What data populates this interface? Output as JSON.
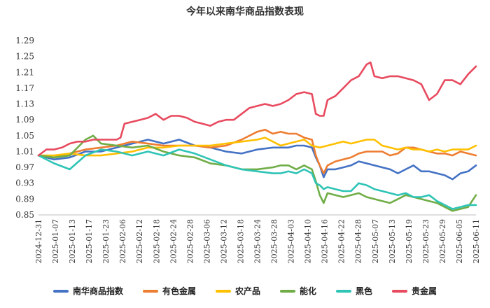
{
  "chart_data": {
    "type": "line",
    "title": "今年以来南华商品指数表现",
    "xlabel": "",
    "ylabel": "",
    "ylim": [
      0.85,
      1.29
    ],
    "yticks": [
      "0.85",
      "0.89",
      "0.93",
      "0.97",
      "1.01",
      "1.05",
      "1.09",
      "1.13",
      "1.17",
      "1.21",
      "1.25",
      "1.29"
    ],
    "ytick_values": [
      0.85,
      0.89,
      0.93,
      0.97,
      1.01,
      1.05,
      1.09,
      1.13,
      1.17,
      1.21,
      1.25,
      1.29
    ],
    "xticks": [
      "2024-12-31",
      "2025-01-07",
      "2025-01-13",
      "2025-01-17",
      "2025-01-23",
      "2025-02-06",
      "2025-02-12",
      "2025-02-18",
      "2025-02-24",
      "2025-02-28",
      "2025-03-06",
      "2025-03-12",
      "2025-03-18",
      "2025-03-24",
      "2025-03-28",
      "2025-04-03",
      "2025-04-10",
      "2025-04-16",
      "2025-04-22",
      "2025-04-28",
      "2025-05-07",
      "2025-05-13",
      "2025-05-19",
      "2025-05-23",
      "2025-05-29",
      "2025-06-05",
      "2025-06-11"
    ],
    "x_range": [
      0,
      112
    ],
    "legend_position": "bottom",
    "grid": false,
    "series": [
      {
        "name": "南华商品指数",
        "color": "#4472C4",
        "points": [
          [
            0,
            1.0
          ],
          [
            4,
            0.99
          ],
          [
            8,
            0.995
          ],
          [
            12,
            1.01
          ],
          [
            16,
            1.01
          ],
          [
            20,
            1.02
          ],
          [
            24,
            1.03
          ],
          [
            28,
            1.04
          ],
          [
            32,
            1.03
          ],
          [
            36,
            1.04
          ],
          [
            40,
            1.025
          ],
          [
            44,
            1.02
          ],
          [
            48,
            1.01
          ],
          [
            52,
            1.005
          ],
          [
            56,
            1.015
          ],
          [
            60,
            1.02
          ],
          [
            64,
            1.02
          ],
          [
            66,
            1.025
          ],
          [
            68,
            1.025
          ],
          [
            70,
            1.02
          ],
          [
            71,
            0.995
          ],
          [
            72,
            0.975
          ],
          [
            73,
            0.945
          ],
          [
            74,
            0.965
          ],
          [
            76,
            0.965
          ],
          [
            78,
            0.97
          ],
          [
            80,
            0.975
          ],
          [
            82,
            0.985
          ],
          [
            84,
            0.98
          ],
          [
            86,
            0.975
          ],
          [
            88,
            0.97
          ],
          [
            90,
            0.965
          ],
          [
            92,
            0.955
          ],
          [
            94,
            0.965
          ],
          [
            96,
            0.975
          ],
          [
            98,
            0.96
          ],
          [
            100,
            0.96
          ],
          [
            102,
            0.955
          ],
          [
            104,
            0.95
          ],
          [
            106,
            0.94
          ],
          [
            108,
            0.955
          ],
          [
            110,
            0.96
          ],
          [
            112,
            0.975
          ]
        ]
      },
      {
        "name": "有色金属",
        "color": "#ED7D31",
        "points": [
          [
            0,
            1.0
          ],
          [
            4,
            0.995
          ],
          [
            8,
            1.005
          ],
          [
            12,
            1.015
          ],
          [
            16,
            1.02
          ],
          [
            20,
            1.025
          ],
          [
            24,
            1.035
          ],
          [
            28,
            1.03
          ],
          [
            32,
            1.025
          ],
          [
            36,
            1.025
          ],
          [
            40,
            1.025
          ],
          [
            44,
            1.02
          ],
          [
            48,
            1.025
          ],
          [
            52,
            1.04
          ],
          [
            56,
            1.06
          ],
          [
            58,
            1.065
          ],
          [
            60,
            1.055
          ],
          [
            62,
            1.06
          ],
          [
            64,
            1.055
          ],
          [
            66,
            1.055
          ],
          [
            68,
            1.045
          ],
          [
            70,
            1.04
          ],
          [
            71,
            1.0
          ],
          [
            72,
            0.975
          ],
          [
            73,
            0.955
          ],
          [
            74,
            0.975
          ],
          [
            76,
            0.985
          ],
          [
            78,
            0.99
          ],
          [
            80,
            0.995
          ],
          [
            82,
            1.005
          ],
          [
            84,
            1.01
          ],
          [
            86,
            1.01
          ],
          [
            88,
            1.01
          ],
          [
            90,
            1.0
          ],
          [
            92,
            1.005
          ],
          [
            94,
            1.02
          ],
          [
            96,
            1.02
          ],
          [
            98,
            1.015
          ],
          [
            100,
            1.01
          ],
          [
            102,
            1.005
          ],
          [
            104,
            1.005
          ],
          [
            106,
            1.0
          ],
          [
            108,
            1.01
          ],
          [
            110,
            1.005
          ],
          [
            112,
            1.0
          ]
        ]
      },
      {
        "name": "农产品",
        "color": "#FFC000",
        "points": [
          [
            0,
            1.0
          ],
          [
            4,
            1.0
          ],
          [
            8,
            1.005
          ],
          [
            12,
            1.0
          ],
          [
            16,
            1.0
          ],
          [
            20,
            1.005
          ],
          [
            24,
            1.01
          ],
          [
            28,
            1.02
          ],
          [
            32,
            1.02
          ],
          [
            36,
            1.025
          ],
          [
            40,
            1.025
          ],
          [
            44,
            1.025
          ],
          [
            48,
            1.03
          ],
          [
            52,
            1.035
          ],
          [
            56,
            1.04
          ],
          [
            58,
            1.045
          ],
          [
            60,
            1.035
          ],
          [
            62,
            1.025
          ],
          [
            64,
            1.03
          ],
          [
            66,
            1.035
          ],
          [
            68,
            1.04
          ],
          [
            70,
            1.025
          ],
          [
            72,
            1.02
          ],
          [
            74,
            1.025
          ],
          [
            76,
            1.03
          ],
          [
            78,
            1.035
          ],
          [
            80,
            1.03
          ],
          [
            82,
            1.035
          ],
          [
            84,
            1.04
          ],
          [
            86,
            1.04
          ],
          [
            88,
            1.025
          ],
          [
            90,
            1.02
          ],
          [
            92,
            1.015
          ],
          [
            94,
            1.02
          ],
          [
            96,
            1.015
          ],
          [
            98,
            1.015
          ],
          [
            100,
            1.01
          ],
          [
            102,
            1.015
          ],
          [
            104,
            1.01
          ],
          [
            106,
            1.015
          ],
          [
            108,
            1.015
          ],
          [
            110,
            1.015
          ],
          [
            112,
            1.025
          ]
        ]
      },
      {
        "name": "能化",
        "color": "#70AD47",
        "points": [
          [
            0,
            1.0
          ],
          [
            4,
            0.995
          ],
          [
            8,
            1.0
          ],
          [
            12,
            1.04
          ],
          [
            14,
            1.05
          ],
          [
            16,
            1.03
          ],
          [
            20,
            1.025
          ],
          [
            24,
            1.02
          ],
          [
            28,
            1.025
          ],
          [
            32,
            1.01
          ],
          [
            36,
            1.0
          ],
          [
            40,
            0.995
          ],
          [
            44,
            0.98
          ],
          [
            48,
            0.975
          ],
          [
            52,
            0.965
          ],
          [
            56,
            0.965
          ],
          [
            60,
            0.97
          ],
          [
            62,
            0.975
          ],
          [
            64,
            0.975
          ],
          [
            66,
            0.965
          ],
          [
            68,
            0.975
          ],
          [
            70,
            0.965
          ],
          [
            71,
            0.935
          ],
          [
            72,
            0.9
          ],
          [
            73,
            0.88
          ],
          [
            74,
            0.905
          ],
          [
            76,
            0.9
          ],
          [
            78,
            0.895
          ],
          [
            80,
            0.9
          ],
          [
            82,
            0.905
          ],
          [
            84,
            0.895
          ],
          [
            86,
            0.89
          ],
          [
            88,
            0.885
          ],
          [
            90,
            0.88
          ],
          [
            92,
            0.89
          ],
          [
            94,
            0.9
          ],
          [
            96,
            0.895
          ],
          [
            98,
            0.89
          ],
          [
            100,
            0.885
          ],
          [
            102,
            0.88
          ],
          [
            104,
            0.87
          ],
          [
            106,
            0.86
          ],
          [
            108,
            0.865
          ],
          [
            110,
            0.87
          ],
          [
            112,
            0.9
          ]
        ]
      },
      {
        "name": "黑色",
        "color": "#2EC4B6",
        "points": [
          [
            0,
            1.0
          ],
          [
            4,
            0.98
          ],
          [
            8,
            0.965
          ],
          [
            12,
            1.0
          ],
          [
            16,
            1.015
          ],
          [
            20,
            1.01
          ],
          [
            24,
            1.0
          ],
          [
            28,
            1.01
          ],
          [
            32,
            1.0
          ],
          [
            36,
            1.015
          ],
          [
            40,
            1.005
          ],
          [
            44,
            0.99
          ],
          [
            48,
            0.975
          ],
          [
            52,
            0.965
          ],
          [
            56,
            0.96
          ],
          [
            60,
            0.955
          ],
          [
            62,
            0.955
          ],
          [
            64,
            0.96
          ],
          [
            66,
            0.955
          ],
          [
            68,
            0.965
          ],
          [
            70,
            0.955
          ],
          [
            71,
            0.93
          ],
          [
            72,
            0.925
          ],
          [
            73,
            0.915
          ],
          [
            74,
            0.92
          ],
          [
            76,
            0.915
          ],
          [
            78,
            0.91
          ],
          [
            80,
            0.91
          ],
          [
            82,
            0.93
          ],
          [
            84,
            0.925
          ],
          [
            86,
            0.915
          ],
          [
            88,
            0.91
          ],
          [
            90,
            0.905
          ],
          [
            92,
            0.9
          ],
          [
            94,
            0.905
          ],
          [
            96,
            0.895
          ],
          [
            98,
            0.895
          ],
          [
            100,
            0.9
          ],
          [
            102,
            0.885
          ],
          [
            104,
            0.875
          ],
          [
            106,
            0.865
          ],
          [
            108,
            0.87
          ],
          [
            110,
            0.875
          ],
          [
            112,
            0.875
          ]
        ]
      },
      {
        "name": "贵金属",
        "color": "#E84A5F",
        "points": [
          [
            0,
            1.0
          ],
          [
            2,
            1.015
          ],
          [
            4,
            1.015
          ],
          [
            6,
            1.02
          ],
          [
            8,
            1.03
          ],
          [
            10,
            1.035
          ],
          [
            12,
            1.035
          ],
          [
            14,
            1.04
          ],
          [
            16,
            1.04
          ],
          [
            18,
            1.04
          ],
          [
            20,
            1.04
          ],
          [
            21,
            1.045
          ],
          [
            22,
            1.08
          ],
          [
            24,
            1.085
          ],
          [
            26,
            1.09
          ],
          [
            28,
            1.095
          ],
          [
            30,
            1.105
          ],
          [
            32,
            1.09
          ],
          [
            34,
            1.1
          ],
          [
            36,
            1.1
          ],
          [
            38,
            1.095
          ],
          [
            40,
            1.085
          ],
          [
            42,
            1.08
          ],
          [
            44,
            1.075
          ],
          [
            46,
            1.085
          ],
          [
            48,
            1.09
          ],
          [
            50,
            1.09
          ],
          [
            52,
            1.105
          ],
          [
            54,
            1.12
          ],
          [
            56,
            1.125
          ],
          [
            58,
            1.13
          ],
          [
            60,
            1.125
          ],
          [
            62,
            1.13
          ],
          [
            64,
            1.14
          ],
          [
            66,
            1.155
          ],
          [
            68,
            1.16
          ],
          [
            70,
            1.155
          ],
          [
            71,
            1.105
          ],
          [
            72,
            1.1
          ],
          [
            73,
            1.1
          ],
          [
            74,
            1.14
          ],
          [
            76,
            1.15
          ],
          [
            78,
            1.17
          ],
          [
            80,
            1.19
          ],
          [
            82,
            1.2
          ],
          [
            84,
            1.23
          ],
          [
            85,
            1.235
          ],
          [
            86,
            1.2
          ],
          [
            88,
            1.195
          ],
          [
            90,
            1.2
          ],
          [
            92,
            1.2
          ],
          [
            94,
            1.195
          ],
          [
            96,
            1.19
          ],
          [
            98,
            1.18
          ],
          [
            100,
            1.14
          ],
          [
            102,
            1.155
          ],
          [
            104,
            1.19
          ],
          [
            106,
            1.19
          ],
          [
            108,
            1.18
          ],
          [
            110,
            1.205
          ],
          [
            112,
            1.225
          ]
        ]
      }
    ]
  }
}
